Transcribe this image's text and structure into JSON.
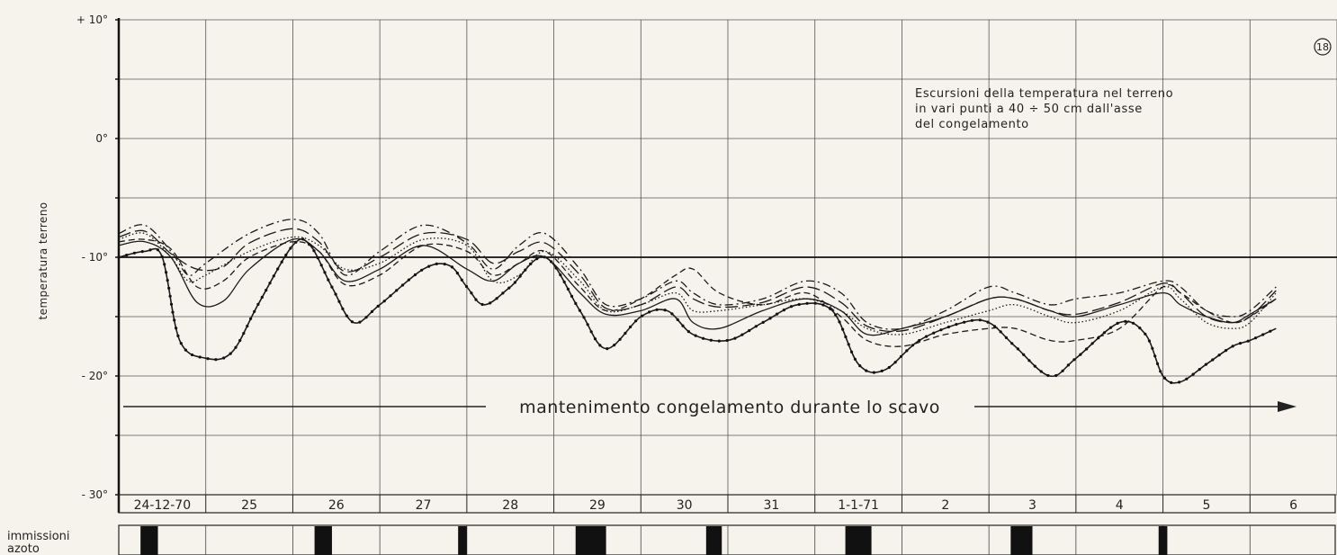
{
  "chart_data": {
    "type": "line",
    "figure_number": "18",
    "title": "Escursioni della temperatura nel terreno in vari punti a 40 ÷ 50 cm dall'asse del congelamento",
    "title_lines": [
      "Escursioni della temperatura nel terreno",
      "in vari punti a 40 ÷ 50 cm dall'asse",
      "del congelamento"
    ],
    "ylabel": "temperatura terreno",
    "ylim": [
      -30,
      10
    ],
    "y_ticks": [
      {
        "value": 10,
        "label": "+ 10°"
      },
      {
        "value": 0,
        "label": "0°"
      },
      {
        "value": -10,
        "label": "- 10°"
      },
      {
        "value": -20,
        "label": "- 20°"
      },
      {
        "value": -30,
        "label": "- 30°"
      }
    ],
    "grid": true,
    "reference_line": -10,
    "x_days": [
      "24-12-70",
      "25",
      "26",
      "27",
      "28",
      "29",
      "30",
      "31",
      "1-1-71",
      "2",
      "3",
      "4",
      "5",
      "6"
    ],
    "annotation_arrow": "mantenimento congelamento durante lo scavo",
    "series": [
      {
        "style": "solid-dotted",
        "x": [
          0,
          0.3,
          0.5,
          0.7,
          1.0,
          1.3,
          1.6,
          2.0,
          2.2,
          2.45,
          2.7,
          3.0,
          3.5,
          3.8,
          4.0,
          4.2,
          4.5,
          4.9,
          5.3,
          5.6,
          6.0,
          6.3,
          6.6,
          7.0,
          7.4,
          7.8,
          8.2,
          8.5,
          8.8,
          9.2,
          9.7,
          10.0,
          10.3,
          10.7,
          11.0,
          11.5,
          11.8,
          12.0,
          12.2,
          12.5,
          12.8,
          13.0,
          13.3
        ],
        "y": [
          -10.0,
          -9.5,
          -10.0,
          -17.0,
          -18.5,
          -18.0,
          -14.0,
          -9.0,
          -9.0,
          -12.5,
          -15.5,
          -14.0,
          -11.0,
          -10.7,
          -12.5,
          -14.0,
          -12.5,
          -10.0,
          -14.5,
          -17.7,
          -15.0,
          -14.5,
          -16.5,
          -17.0,
          -15.5,
          -14.0,
          -14.5,
          -19.0,
          -19.5,
          -17.0,
          -15.5,
          -15.5,
          -17.5,
          -20.0,
          -18.5,
          -15.5,
          -16.5,
          -20.0,
          -20.5,
          -19.0,
          -17.5,
          -17.0,
          -16.0
        ]
      },
      {
        "style": "solid",
        "x": [
          0,
          0.3,
          0.6,
          0.9,
          1.2,
          1.5,
          2.0,
          2.3,
          2.6,
          3.0,
          3.5,
          4.0,
          4.3,
          4.6,
          4.9,
          5.3,
          5.6,
          6.0,
          6.4,
          6.6,
          6.9,
          7.4,
          7.9,
          8.3,
          8.6,
          9.0,
          9.5,
          10.0,
          10.3,
          10.7,
          11.0,
          11.5,
          12.0,
          12.2,
          12.5,
          12.8,
          13.0,
          13.3
        ],
        "y": [
          -9.0,
          -8.7,
          -10.0,
          -13.8,
          -13.7,
          -11.0,
          -8.5,
          -9.5,
          -12.0,
          -11.0,
          -9.0,
          -11.0,
          -12.0,
          -10.5,
          -10.0,
          -13.0,
          -14.8,
          -14.5,
          -13.5,
          -15.5,
          -16.0,
          -14.5,
          -13.5,
          -14.5,
          -16.5,
          -16.0,
          -15.0,
          -13.5,
          -13.5,
          -14.5,
          -15.0,
          -14.0,
          -13.0,
          -14.0,
          -15.0,
          -15.5,
          -14.8,
          -13.5
        ]
      },
      {
        "style": "dash-dot",
        "x": [
          0,
          0.3,
          0.6,
          0.8,
          1.0,
          1.5,
          2.0,
          2.3,
          2.6,
          3.0,
          3.5,
          4.0,
          4.3,
          4.6,
          4.9,
          5.3,
          5.6,
          6.0,
          6.4,
          6.6,
          6.9,
          7.4,
          7.9,
          8.3,
          8.6,
          9.0,
          9.5,
          10.0,
          10.3,
          10.7,
          11.0,
          11.5,
          12.0,
          12.2,
          12.5,
          12.8,
          13.0,
          13.3
        ],
        "y": [
          -8.0,
          -7.3,
          -9.5,
          -11.5,
          -10.5,
          -8.0,
          -6.8,
          -8.0,
          -11.5,
          -9.5,
          -7.3,
          -8.8,
          -11.0,
          -9.0,
          -8.0,
          -11.0,
          -14.0,
          -13.5,
          -12.0,
          -13.0,
          -14.0,
          -13.5,
          -12.0,
          -13.0,
          -15.5,
          -16.0,
          -14.5,
          -12.5,
          -13.0,
          -14.0,
          -13.5,
          -13.0,
          -12.0,
          -12.5,
          -14.5,
          -15.0,
          -14.5,
          -12.5
        ]
      },
      {
        "style": "dotted",
        "x": [
          0,
          0.3,
          0.6,
          0.8,
          1.0,
          1.5,
          2.0,
          2.3,
          2.6,
          3.0,
          3.5,
          4.0,
          4.3,
          4.6,
          4.9,
          5.3,
          5.6,
          6.0,
          6.4,
          6.6,
          6.9,
          7.4,
          7.9,
          8.3,
          8.6,
          9.0,
          9.5,
          10.0,
          10.3,
          10.7,
          11.0,
          11.5,
          12.0,
          12.2,
          12.5,
          12.8,
          13.0,
          13.3
        ],
        "y": [
          -8.5,
          -8.0,
          -10.0,
          -12.0,
          -11.5,
          -9.5,
          -8.3,
          -9.0,
          -11.0,
          -10.5,
          -8.5,
          -9.0,
          -12.0,
          -11.5,
          -9.5,
          -12.0,
          -14.5,
          -14.0,
          -13.0,
          -14.5,
          -14.5,
          -14.0,
          -13.5,
          -14.5,
          -16.0,
          -16.5,
          -15.5,
          -14.5,
          -14.0,
          -15.0,
          -15.5,
          -14.5,
          -12.5,
          -13.5,
          -15.5,
          -16.0,
          -15.5,
          -13.0
        ]
      },
      {
        "style": "dashed",
        "x": [
          0,
          0.3,
          0.6,
          0.9,
          1.2,
          1.5,
          2.0,
          2.3,
          2.6,
          3.0,
          3.5,
          4.0,
          4.3,
          4.6,
          4.9,
          5.3,
          5.6,
          6.0,
          6.4,
          6.6,
          6.9,
          7.4,
          7.9,
          8.3,
          8.6,
          9.0,
          9.5,
          10.0,
          10.3,
          10.7,
          11.0,
          11.5,
          12.0,
          12.2,
          12.5,
          12.8,
          13.0,
          13.3
        ],
        "y": [
          -8.7,
          -8.5,
          -9.3,
          -12.5,
          -12.0,
          -10.0,
          -8.7,
          -9.5,
          -12.3,
          -11.5,
          -9.0,
          -9.5,
          -11.5,
          -10.5,
          -9.5,
          -12.5,
          -14.5,
          -13.5,
          -11.5,
          -11.0,
          -13.0,
          -14.0,
          -13.0,
          -15.0,
          -17.0,
          -17.5,
          -16.5,
          -16.0,
          -16.0,
          -17.0,
          -17.0,
          -16.0,
          -12.5,
          -13.0,
          -14.5,
          -15.5,
          -15.0,
          -13.5
        ]
      },
      {
        "style": "long-dash",
        "x": [
          0,
          0.3,
          0.6,
          0.9,
          1.2,
          1.5,
          2.0,
          2.3,
          2.6,
          3.0,
          3.5,
          4.0,
          4.3,
          4.6,
          4.9,
          5.3,
          5.6,
          6.0,
          6.4,
          6.6,
          6.9,
          7.4,
          7.9,
          8.3,
          8.6,
          9.0,
          9.5,
          10.0,
          10.3,
          10.7,
          11.0,
          11.5,
          12.0,
          12.2,
          12.5,
          12.8,
          13.0,
          13.3
        ],
        "y": [
          -8.3,
          -7.8,
          -9.7,
          -11.0,
          -10.8,
          -8.8,
          -7.6,
          -8.7,
          -11.2,
          -10.0,
          -8.0,
          -8.5,
          -10.5,
          -9.5,
          -8.8,
          -11.5,
          -14.3,
          -14.0,
          -12.5,
          -13.5,
          -14.2,
          -13.8,
          -12.5,
          -13.8,
          -15.8,
          -16.2,
          -15.0,
          -13.5,
          -13.5,
          -14.5,
          -14.8,
          -13.8,
          -12.2,
          -13.0,
          -15.0,
          -15.5,
          -15.0,
          -12.8
        ]
      }
    ],
    "nitrogen_label": [
      "immissioni",
      "azoto"
    ],
    "nitrogen_blocks": [
      {
        "start": 0.25,
        "end": 0.45
      },
      {
        "start": 2.25,
        "end": 2.45
      },
      {
        "start": 3.9,
        "end": 4.0
      },
      {
        "start": 5.25,
        "end": 5.6
      },
      {
        "start": 6.75,
        "end": 6.93
      },
      {
        "start": 8.35,
        "end": 8.65
      },
      {
        "start": 10.25,
        "end": 10.5
      },
      {
        "start": 11.95,
        "end": 12.05
      }
    ],
    "legend": "none"
  }
}
